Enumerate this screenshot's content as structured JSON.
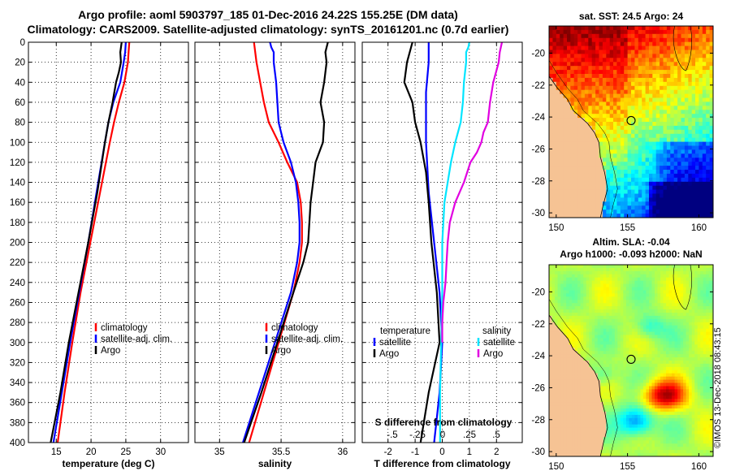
{
  "header": {
    "title_line1": "Argo profile: aoml 5903797_185 01-Dec-2016 24.22S 155.25E (DM data)",
    "title_line2": "Climatology: CARS2009. Satellite-adjusted climatology: synTS_20161201.nc (0.7d earlier)"
  },
  "copyright": "©IMOS 13-Dec-2018 08:43:15",
  "colors": {
    "climatology": "#ff0000",
    "satellite_adj": "#0000ff",
    "argo": "#000000",
    "sat_diff": "#00e5ff",
    "argo_diff": "#e100e1",
    "land": "#f6c394"
  },
  "chart_data": [
    {
      "type": "line",
      "name": "temperature",
      "xlabel": "temperature (deg C)",
      "ylabel": "depth",
      "xlim": [
        11,
        34
      ],
      "ylim": [
        400,
        0
      ],
      "xticks": [
        15,
        20,
        25,
        30
      ],
      "yticks": [
        0,
        20,
        40,
        60,
        80,
        100,
        120,
        140,
        160,
        180,
        200,
        220,
        240,
        260,
        280,
        300,
        320,
        340,
        360,
        380,
        400
      ],
      "legend": [
        "climatology",
        "satellite-adj. clim.",
        "Argo"
      ],
      "series": [
        {
          "name": "climatology",
          "depth": [
            0,
            10,
            20,
            40,
            60,
            80,
            100,
            150,
            200,
            250,
            300,
            350,
            400
          ],
          "values": [
            25.5,
            25.4,
            25.3,
            24.8,
            24.0,
            23.3,
            22.7,
            21.3,
            19.9,
            18.5,
            17.3,
            16.2,
            15.2
          ]
        },
        {
          "name": "satellite-adj. clim.",
          "depth": [
            0,
            10,
            20,
            40,
            60,
            80,
            100,
            150,
            200,
            250,
            300,
            350,
            400
          ],
          "values": [
            25.0,
            24.9,
            24.7,
            24.2,
            23.2,
            22.5,
            22.0,
            20.8,
            19.6,
            18.3,
            17.0,
            15.8,
            14.6
          ]
        },
        {
          "name": "Argo",
          "depth": [
            0,
            10,
            20,
            30,
            40,
            60,
            80,
            100,
            150,
            200,
            250,
            300,
            350,
            400
          ],
          "values": [
            24.4,
            24.2,
            24.3,
            24.0,
            23.6,
            23.1,
            22.5,
            22.0,
            20.9,
            19.6,
            18.2,
            16.8,
            15.6,
            14.2
          ]
        }
      ]
    },
    {
      "type": "line",
      "name": "salinity",
      "xlabel": "salinity",
      "ylabel": "depth",
      "xlim": [
        34.8,
        36.1
      ],
      "ylim": [
        400,
        0
      ],
      "xticks": [
        35,
        35.5,
        36
      ],
      "legend": [
        "climatology",
        "satellite-adj. clim.",
        "Argo"
      ],
      "series": [
        {
          "name": "climatology",
          "depth": [
            0,
            20,
            40,
            60,
            80,
            100,
            120,
            140,
            160,
            180,
            200,
            220,
            250,
            300,
            350,
            400
          ],
          "values": [
            35.28,
            35.3,
            35.33,
            35.36,
            35.4,
            35.48,
            35.55,
            35.63,
            35.66,
            35.67,
            35.67,
            35.65,
            35.6,
            35.48,
            35.36,
            35.24
          ]
        },
        {
          "name": "satellite-adj. clim.",
          "depth": [
            0,
            5,
            10,
            20,
            40,
            60,
            80,
            100,
            120,
            140,
            160,
            180,
            200,
            220,
            250,
            300,
            350,
            400
          ],
          "values": [
            35.41,
            35.42,
            35.44,
            35.44,
            35.46,
            35.47,
            35.48,
            35.52,
            35.58,
            35.62,
            35.64,
            35.65,
            35.65,
            35.63,
            35.58,
            35.45,
            35.32,
            35.19
          ]
        },
        {
          "name": "Argo",
          "depth": [
            0,
            10,
            20,
            40,
            60,
            80,
            100,
            120,
            140,
            160,
            180,
            200,
            220,
            250,
            300,
            350,
            400
          ],
          "values": [
            35.88,
            35.86,
            35.87,
            35.85,
            35.82,
            35.85,
            35.84,
            35.78,
            35.76,
            35.74,
            35.73,
            35.72,
            35.68,
            35.6,
            35.47,
            35.34,
            35.2
          ]
        }
      ]
    },
    {
      "type": "line",
      "name": "differences",
      "xlabel": "T difference from climatology",
      "xlabel_top": "S difference from climatology",
      "xlim": [
        -2.95,
        2.95
      ],
      "ylim": [
        400,
        0
      ],
      "xticks": [
        -2,
        -1,
        0,
        1,
        2
      ],
      "top_ticks": [
        -0.5,
        -0.25,
        0,
        0.25,
        0.5
      ],
      "legend": {
        "temperature_header": "temperature",
        "salinity_header": "salinity",
        "temperature": [
          "satellite",
          "Argo"
        ],
        "salinity": [
          "satellite",
          "Argo"
        ]
      },
      "series": [
        {
          "name": "T satellite",
          "depth": [
            0,
            20,
            50,
            100,
            150,
            200,
            250,
            300,
            350,
            400
          ],
          "values": [
            -0.5,
            -0.5,
            -0.6,
            -0.6,
            -0.5,
            -0.3,
            -0.1,
            0.0,
            -0.1,
            -0.3
          ]
        },
        {
          "name": "T Argo",
          "depth": [
            0,
            20,
            40,
            60,
            80,
            100,
            130,
            160,
            200,
            250,
            300,
            350,
            400
          ],
          "values": [
            -1.1,
            -1.3,
            -1.4,
            -1.1,
            -1.0,
            -0.8,
            -0.6,
            -0.5,
            -0.4,
            -0.2,
            -0.1,
            -0.5,
            -0.8
          ]
        },
        {
          "name": "S satellite",
          "depth": [
            0,
            5,
            10,
            20,
            40,
            60,
            80,
            100,
            120,
            140,
            160,
            200,
            250,
            300,
            350,
            400
          ],
          "values": [
            0.25,
            0.24,
            0.22,
            0.22,
            0.2,
            0.19,
            0.17,
            0.12,
            0.08,
            0.05,
            0.02,
            0.0,
            0.0,
            -0.01,
            -0.02,
            -0.02
          ]
        },
        {
          "name": "S Argo",
          "depth": [
            0,
            10,
            20,
            40,
            60,
            80,
            90,
            100,
            110,
            120,
            140,
            160,
            180,
            200,
            220,
            240,
            250,
            260,
            280,
            300
          ],
          "values": [
            0.55,
            0.53,
            0.52,
            0.47,
            0.44,
            0.42,
            0.38,
            0.36,
            0.32,
            0.26,
            0.2,
            0.12,
            0.07,
            0.05,
            0.04,
            0.03,
            0.02,
            0.01,
            0.0,
            0.0
          ]
        }
      ]
    },
    {
      "type": "heatmap",
      "name": "sst_map",
      "title": "sat. SST: 24.5 Argo: 24",
      "xlim": [
        149.5,
        161
      ],
      "ylim": [
        -30.3,
        -18.3
      ],
      "xticks": [
        150,
        155,
        160
      ],
      "yticks": [
        -20,
        -22,
        -24,
        -26,
        -28,
        -30
      ],
      "marker": {
        "lon": 155.25,
        "lat": -24.22
      }
    },
    {
      "type": "heatmap",
      "name": "sla_map",
      "title": "Altim. SLA: -0.04",
      "subtitle": "Argo h1000: -0.093 h2000: NaN",
      "xlim": [
        149.5,
        161
      ],
      "ylim": [
        -30.3,
        -18.3
      ],
      "xticks": [
        150,
        155,
        160
      ],
      "yticks": [
        -20,
        -22,
        -24,
        -26,
        -28,
        -30
      ],
      "marker": {
        "lon": 155.25,
        "lat": -24.22
      }
    }
  ]
}
